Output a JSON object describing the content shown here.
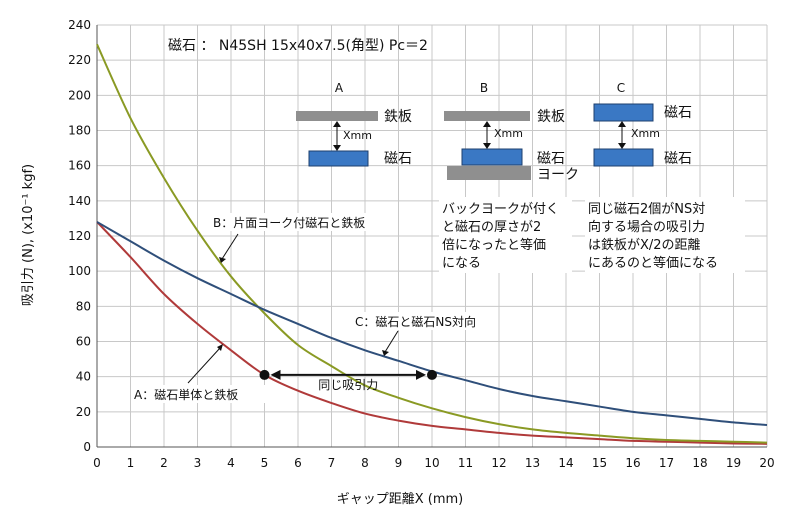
{
  "chart_data": {
    "type": "line",
    "title": "磁石 ： N45SH 15x40x7.5(角型) Pc＝2",
    "xlabel": "ギャップ距離X (mm)",
    "ylabel": "吸引力 (N), (x10⁻¹ kgf)",
    "xlim": [
      0,
      20
    ],
    "ylim": [
      0,
      240
    ],
    "x_ticks": [
      "0",
      "1",
      "2",
      "3",
      "4",
      "5",
      "6",
      "7",
      "8",
      "9",
      "10",
      "11",
      "12",
      "13",
      "14",
      "15",
      "16",
      "17",
      "18",
      "19",
      "20"
    ],
    "y_ticks": [
      "0",
      "20",
      "40",
      "60",
      "80",
      "100",
      "120",
      "140",
      "160",
      "180",
      "200",
      "220",
      "240"
    ],
    "grid": true,
    "x": [
      0,
      1,
      2,
      3,
      4,
      5,
      6,
      7,
      8,
      9,
      10,
      11,
      12,
      13,
      14,
      15,
      16,
      17,
      18,
      19,
      20
    ],
    "series": [
      {
        "name": "A：磁石単体と鉄板",
        "color": "#b03a3a",
        "values": [
          128,
          108,
          87,
          70,
          55,
          41,
          32,
          25,
          19,
          15,
          12,
          10,
          8,
          6.5,
          5.5,
          4.5,
          3.5,
          3,
          2.5,
          2,
          1.8
        ]
      },
      {
        "name": "B：片面ヨーク付磁石と鉄板",
        "color": "#8a9a24",
        "values": [
          229,
          187,
          153,
          123,
          97,
          76,
          58,
          46,
          35,
          28,
          22,
          17,
          13,
          10,
          8,
          6.5,
          5,
          4,
          3.5,
          3,
          2.5
        ]
      },
      {
        "name": "C：磁石と磁石NS対向",
        "color": "#2f4f7a",
        "values": [
          128,
          117,
          106,
          96,
          87,
          78,
          70,
          62,
          55,
          49,
          43,
          38,
          33,
          29,
          26,
          23,
          20,
          18,
          16,
          14,
          12.5
        ]
      }
    ],
    "annotations": {
      "same_force": "同じ吸引力",
      "same_force_points": [
        [
          5,
          41
        ],
        [
          10,
          41
        ]
      ],
      "label_a": "A：磁石単体と鉄板",
      "label_b": "B：片面ヨーク付磁石と鉄板",
      "label_c": "C：磁石と磁石NS対向"
    }
  },
  "diagrams": {
    "a": {
      "letter": "A",
      "plate": "鉄板",
      "gap": "Xmm",
      "magnet": "磁石"
    },
    "b": {
      "letter": "B",
      "plate": "鉄板",
      "gap": "Xmm",
      "magnet": "磁石",
      "yoke": "ヨーク",
      "note": [
        "バックヨークが付く",
        "と磁石の厚さが2",
        "倍になったと等価",
        "になる"
      ]
    },
    "c": {
      "letter": "C",
      "magnet_top": "磁石",
      "gap": "Xmm",
      "magnet_bottom": "磁石",
      "note": [
        "同じ磁石2個がNS対",
        "向する場合の吸引力",
        "は鉄板がX/2の距離",
        "にあるのと等価になる"
      ]
    }
  },
  "colors": {
    "magnet": "#3a78c4",
    "plate": "#8f8f8f",
    "grid": "#c8c8c8"
  }
}
